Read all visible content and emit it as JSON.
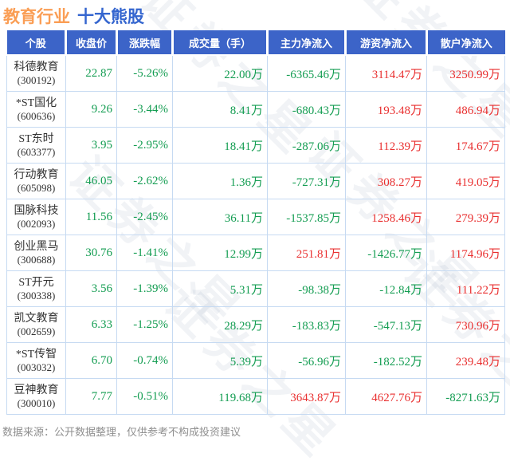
{
  "page": {
    "title_part1": "教育行业",
    "title_part2": "十大熊股",
    "footer": "数据来源：公开数据整理，仅供参考不构成投资建议",
    "watermark_text": "证券之星"
  },
  "colors": {
    "title_orange": "#FA9E55",
    "title_blue": "#3566CF",
    "header_bg": "#3C64C8",
    "negative_green": "#149D52",
    "positive_red": "#E93030",
    "border": "#C6DAF2"
  },
  "chart_data": {
    "type": "table",
    "title": "教育行业 十大熊股",
    "columns": [
      "个股",
      "收盘价",
      "涨跌幅",
      "成交量（手）",
      "主力净流入",
      "游资净流入",
      "散户净流入"
    ],
    "rows": [
      {
        "name": "科德教育",
        "code": "(300192)",
        "close": "22.87",
        "change": "-5.26%",
        "volume": "22.00万",
        "main_inflow": "-6365.46万",
        "hot_money_inflow": "3114.47万",
        "retail_inflow": "3250.99万"
      },
      {
        "name": "*ST国化",
        "code": "(600636)",
        "close": "9.26",
        "change": "-3.44%",
        "volume": "8.41万",
        "main_inflow": "-680.43万",
        "hot_money_inflow": "193.48万",
        "retail_inflow": "486.94万"
      },
      {
        "name": "ST东时",
        "code": "(603377)",
        "close": "3.95",
        "change": "-2.95%",
        "volume": "18.41万",
        "main_inflow": "-287.06万",
        "hot_money_inflow": "112.39万",
        "retail_inflow": "174.67万"
      },
      {
        "name": "行动教育",
        "code": "(605098)",
        "close": "46.05",
        "change": "-2.62%",
        "volume": "1.36万",
        "main_inflow": "-727.31万",
        "hot_money_inflow": "308.27万",
        "retail_inflow": "419.05万"
      },
      {
        "name": "国脉科技",
        "code": "(002093)",
        "close": "11.56",
        "change": "-2.45%",
        "volume": "36.11万",
        "main_inflow": "-1537.85万",
        "hot_money_inflow": "1258.46万",
        "retail_inflow": "279.39万"
      },
      {
        "name": "创业黑马",
        "code": "(300688)",
        "close": "30.76",
        "change": "-1.41%",
        "volume": "12.99万",
        "main_inflow": "251.81万",
        "hot_money_inflow": "-1426.77万",
        "retail_inflow": "1174.96万"
      },
      {
        "name": "ST开元",
        "code": "(300338)",
        "close": "3.56",
        "change": "-1.39%",
        "volume": "5.31万",
        "main_inflow": "-98.38万",
        "hot_money_inflow": "-12.84万",
        "retail_inflow": "111.22万"
      },
      {
        "name": "凯文教育",
        "code": "(002659)",
        "close": "6.33",
        "change": "-1.25%",
        "volume": "28.29万",
        "main_inflow": "-183.83万",
        "hot_money_inflow": "-547.13万",
        "retail_inflow": "730.96万"
      },
      {
        "name": "*ST传智",
        "code": "(003032)",
        "close": "6.70",
        "change": "-0.74%",
        "volume": "5.39万",
        "main_inflow": "-56.96万",
        "hot_money_inflow": "-182.52万",
        "retail_inflow": "239.48万"
      },
      {
        "name": "豆神教育",
        "code": "(300010)",
        "close": "7.77",
        "change": "-0.51%",
        "volume": "119.68万",
        "main_inflow": "3643.87万",
        "hot_money_inflow": "4627.76万",
        "retail_inflow": "-8271.63万"
      }
    ]
  }
}
